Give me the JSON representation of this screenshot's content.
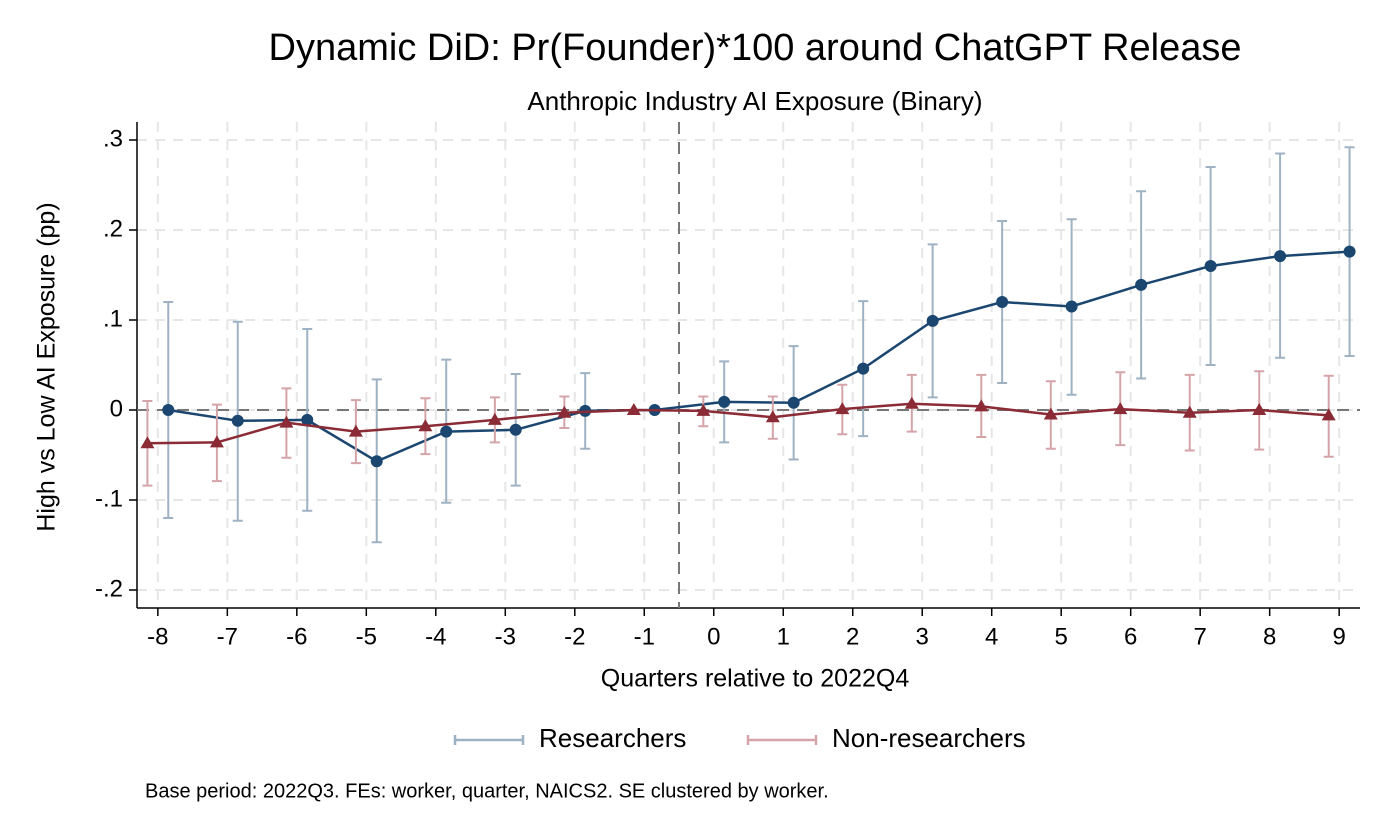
{
  "chart_data": {
    "type": "line",
    "title": "Dynamic DiD: Pr(Founder)*100 around ChatGPT Release",
    "subtitle": "Anthropic Industry AI Exposure (Binary)",
    "x_label": "Quarters relative to 2022Q4",
    "y_label": "High vs Low AI Exposure (pp)",
    "note": "Base period: 2022Q3. FEs: worker, quarter, NAICS2. SE clustered by worker.",
    "x": [
      -8,
      -7,
      -6,
      -5,
      -4,
      -3,
      -2,
      -1,
      0,
      1,
      2,
      3,
      4,
      5,
      6,
      7,
      8,
      9
    ],
    "xlim": [
      -8.3,
      9.3
    ],
    "xticks": [
      -8,
      -7,
      -6,
      -5,
      -4,
      -3,
      -2,
      -1,
      0,
      1,
      2,
      3,
      4,
      5,
      6,
      7,
      8,
      9
    ],
    "ylim": [
      -0.22,
      0.32
    ],
    "yticks": [
      {
        "value": -0.2,
        "label": "-.2"
      },
      {
        "value": -0.1,
        "label": "-.1"
      },
      0,
      {
        "value": 0.1,
        "label": ".1"
      },
      {
        "value": 0.2,
        "label": ".2"
      },
      {
        "value": 0.3,
        "label": ".3"
      }
    ],
    "grid": true,
    "event_line": -0.5,
    "reference_line": 0,
    "legend": "bottom",
    "series": [
      {
        "name": "Researchers",
        "color": "#1a4670",
        "ci_color": "#9fb2c3",
        "marker": "circle",
        "values": [
          0,
          -0.012,
          -0.011,
          -0.057,
          -0.024,
          -0.022,
          -0.001,
          0,
          0.009,
          0.008,
          0.046,
          0.099,
          0.12,
          0.115,
          0.139,
          0.16,
          0.171,
          0.176
        ],
        "lower": [
          -0.12,
          -0.123,
          -0.112,
          -0.147,
          -0.103,
          -0.084,
          -0.043,
          null,
          -0.036,
          -0.055,
          -0.029,
          0.014,
          0.03,
          0.017,
          0.035,
          0.05,
          0.058,
          0.06
        ],
        "upper": [
          0.12,
          0.098,
          0.09,
          0.034,
          0.056,
          0.04,
          0.041,
          null,
          0.054,
          0.071,
          0.121,
          0.184,
          0.21,
          0.212,
          0.243,
          0.27,
          0.285,
          0.292
        ]
      },
      {
        "name": "Non-researchers",
        "color": "#8b2b36",
        "ci_color": "#d5a4a9",
        "marker": "triangle",
        "values": [
          -0.037,
          -0.036,
          -0.014,
          -0.024,
          -0.018,
          -0.011,
          -0.003,
          0,
          -0.001,
          -0.008,
          0.001,
          0.007,
          0.004,
          -0.005,
          0.001,
          -0.003,
          0,
          -0.006
        ],
        "lower": [
          -0.084,
          -0.079,
          -0.053,
          -0.059,
          -0.049,
          -0.036,
          -0.02,
          null,
          -0.018,
          -0.032,
          -0.027,
          -0.024,
          -0.03,
          -0.043,
          -0.039,
          -0.045,
          -0.044,
          -0.052
        ],
        "upper": [
          0.01,
          0.006,
          0.024,
          0.011,
          0.013,
          0.014,
          0.015,
          null,
          0.015,
          0.015,
          0.028,
          0.039,
          0.039,
          0.032,
          0.042,
          0.039,
          0.043,
          0.038
        ]
      }
    ]
  }
}
